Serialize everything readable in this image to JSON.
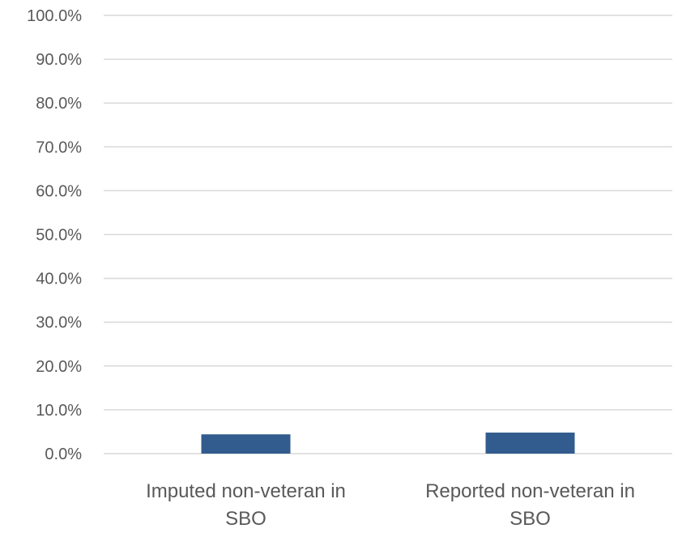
{
  "chart_data": {
    "type": "bar",
    "title": "",
    "xlabel": "",
    "ylabel": "",
    "categories": [
      [
        "Imputed non-veteran in",
        "SBO"
      ],
      [
        "Reported non-veteran in",
        "SBO"
      ]
    ],
    "values": [
      4.4,
      4.8
    ],
    "ylim": [
      0,
      100
    ],
    "yticks": [
      "0.0%",
      "10.0%",
      "20.0%",
      "30.0%",
      "40.0%",
      "50.0%",
      "60.0%",
      "70.0%",
      "80.0%",
      "90.0%",
      "100.0%"
    ],
    "grid": true,
    "legend": "none",
    "colors": {
      "bar": "#335C8E",
      "grid": "#D9D9D9",
      "text": "#595959"
    }
  }
}
